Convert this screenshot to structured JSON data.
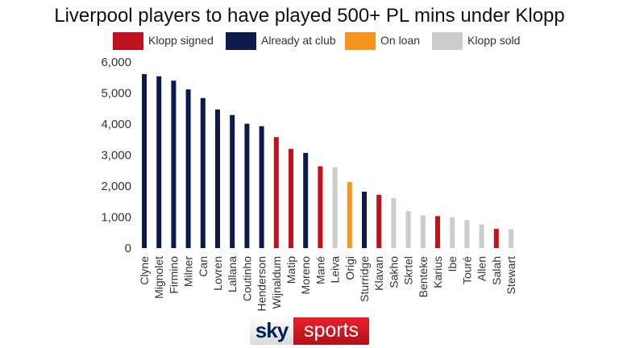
{
  "chart_data": {
    "type": "bar",
    "title": "Liverpool players to have played 500+ PL mins under Klopp",
    "xlabel": "",
    "ylabel": "",
    "ylim": [
      0,
      6000
    ],
    "yticks": [
      0,
      1000,
      2000,
      3000,
      4000,
      5000,
      6000
    ],
    "ytick_labels": [
      "0",
      "1,000",
      "2,000",
      "3,000",
      "4,000",
      "5,000",
      "6,000"
    ],
    "grid": false,
    "legend_position": "top-center",
    "legend": [
      {
        "key": "signed",
        "label": "Klopp signed",
        "color": "#c0111f"
      },
      {
        "key": "club",
        "label": "Already at club",
        "color": "#0c1a4b"
      },
      {
        "key": "loan",
        "label": "On loan",
        "color": "#f7941d"
      },
      {
        "key": "sold",
        "label": "Klopp sold",
        "color": "#cccccc"
      }
    ],
    "categories": [
      "Clyne",
      "Mignolet",
      "Firmino",
      "Milner",
      "Can",
      "Lovren",
      "Lallana",
      "Coutinho",
      "Henderson",
      "Wijnaldum",
      "Matip",
      "Moreno",
      "Mané",
      "Leiva",
      "Origi",
      "Sturridge",
      "Klavan",
      "Sakho",
      "Skrtel",
      "Benteke",
      "Karius",
      "Ibe",
      "Touré",
      "Allen",
      "Salah",
      "Stewart"
    ],
    "values": [
      5610,
      5540,
      5400,
      5120,
      4840,
      4470,
      4290,
      4010,
      3930,
      3580,
      3200,
      3070,
      2640,
      2610,
      2130,
      1820,
      1720,
      1610,
      1190,
      1060,
      1030,
      1000,
      900,
      760,
      620,
      610
    ],
    "groups": [
      "club",
      "club",
      "club",
      "club",
      "club",
      "club",
      "club",
      "club",
      "club",
      "signed",
      "signed",
      "club",
      "signed",
      "sold",
      "loan",
      "club",
      "signed",
      "sold",
      "sold",
      "sold",
      "signed",
      "sold",
      "sold",
      "sold",
      "signed",
      "sold"
    ]
  },
  "brand": {
    "logo_sky": "sky",
    "logo_sports": "sports",
    "sky_color": "#00205b",
    "sports_color": "#e8202a"
  }
}
